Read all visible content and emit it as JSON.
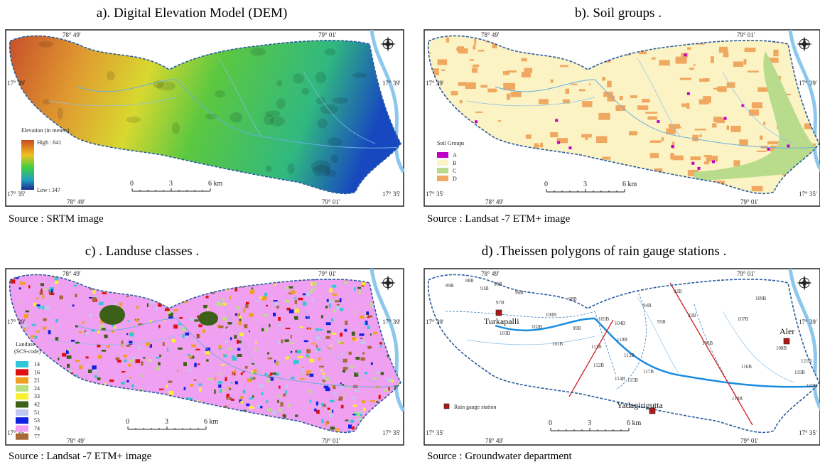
{
  "panels": [
    {
      "title": "a).  Digital Elevation Model (DEM)",
      "source": "Source : SRTM image",
      "coords": {
        "lon_west": "78° 49'",
        "lon_east": "79° 01'",
        "lat_north": "17° 39'",
        "lat_south": "17° 35'"
      },
      "legend": {
        "title": "Elevation (in meters)",
        "high": "High : 641",
        "low": "Low : 347"
      },
      "scale": [
        "0",
        "3",
        "6 km"
      ]
    },
    {
      "title": "b). Soil  groups .",
      "source": "Source : Landsat -7 ETM+ image",
      "coords": {
        "lon_west": "78° 49'",
        "lon_east": "79° 01'",
        "lat_north": "17° 39'",
        "lat_south": "17° 35'"
      },
      "legend": {
        "title": "Soil Groups",
        "items": [
          {
            "label": "A",
            "color": "#c000c8"
          },
          {
            "label": "B",
            "color": "#fbf3c4"
          },
          {
            "label": "C",
            "color": "#b9dc8c"
          },
          {
            "label": "D",
            "color": "#f0a860"
          }
        ]
      },
      "scale": [
        "0",
        "3",
        "6 km"
      ]
    },
    {
      "title": "c) . Landuse classes .",
      "source": "Source : Landsat -7 ETM+ image",
      "coords": {
        "lon_west": "78° 49'",
        "lon_east": "79° 01'",
        "lat_north": "17° 39'",
        "lat_south": "17° 35'"
      },
      "legend": {
        "title": "Landuse",
        "subtitle": "(SCS-code)",
        "items": [
          {
            "label": "14",
            "color": "#30c8d8"
          },
          {
            "label": "16",
            "color": "#e01010"
          },
          {
            "label": "21",
            "color": "#f0a020"
          },
          {
            "label": "24",
            "color": "#b8e080"
          },
          {
            "label": "33",
            "color": "#f8f030"
          },
          {
            "label": "42",
            "color": "#3c6018"
          },
          {
            "label": "51",
            "color": "#c0c8f0"
          },
          {
            "label": "53",
            "color": "#1020e0"
          },
          {
            "label": "74",
            "color": "#f0a0f0"
          },
          {
            "label": "77",
            "color": "#a86838"
          }
        ]
      },
      "scale": [
        "0",
        "3",
        "6 km"
      ]
    },
    {
      "title": "d) .Theissen polygons of rain gauge stations  .",
      "source": "Source : Groundwater department",
      "coords": {
        "lon_west": "78° 49'",
        "lon_east": "79° 01'",
        "lat_north": "17° 39'",
        "lat_south": "17° 35'"
      },
      "legend": {
        "items": [
          {
            "label": "Rain gauge station",
            "color": "#b01818"
          }
        ]
      },
      "stations": [
        "Turkapalli",
        "Aler",
        "Yadagirigutta"
      ],
      "polygon_ids": [
        "89B",
        "88B",
        "91B",
        "90B",
        "96B",
        "97B",
        "98B",
        "100B",
        "102B",
        "103B",
        "101B",
        "99B",
        "105B",
        "104B",
        "110B",
        "111B",
        "113B",
        "112B",
        "114B",
        "115B",
        "117B",
        "92B",
        "94B",
        "95B",
        "93B",
        "109B",
        "107B",
        "106B",
        "108B",
        "116B",
        "121B",
        "119B",
        "122B",
        "118B"
      ],
      "scale": [
        "0",
        "3",
        "6 km"
      ]
    }
  ]
}
